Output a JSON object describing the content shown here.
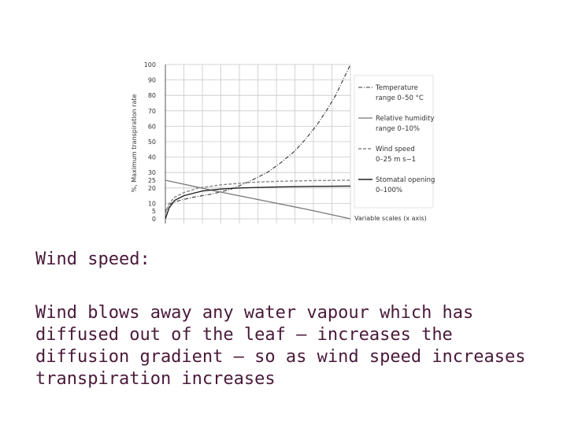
{
  "heading": "Wind speed:",
  "body": "Wind blows away any water vapour which has diffused out of the leaf – increases the diffusion gradient – so as wind speed increases transpiration increases",
  "chart_data": {
    "type": "line",
    "ylabel": "%, Maximum transpiration rate",
    "xlabel": "Variable scales (x axis)",
    "ylim": [
      0,
      100
    ],
    "yticks": [
      0,
      5,
      10,
      20,
      25,
      30,
      40,
      50,
      60,
      70,
      80,
      90,
      100
    ],
    "xlim": [
      0,
      1
    ],
    "grid": true,
    "legend_position": "right",
    "series": [
      {
        "name": "Temperature range 0–50 °C",
        "legend_lines": [
          "Temperature",
          "range 0–50 °C"
        ],
        "style": "dash-dot",
        "color": "#333333",
        "x": [
          0,
          0.03,
          0.08,
          0.15,
          0.25,
          0.35,
          0.45,
          0.55,
          0.62,
          0.7,
          0.76,
          0.82,
          0.87,
          0.92,
          0.96,
          1.0
        ],
        "y": [
          5,
          10,
          12,
          14,
          16,
          19,
          24,
          30,
          36,
          44,
          52,
          61,
          70,
          80,
          90,
          100
        ]
      },
      {
        "name": "Relative humidity range 0–10%",
        "legend_lines": [
          "Relative humidity",
          "range 0–10%"
        ],
        "style": "solid-gray",
        "color": "#777777",
        "x": [
          0,
          0.25,
          0.5,
          0.75,
          1.0
        ],
        "y": [
          25,
          18.5,
          12.5,
          6.5,
          0
        ]
      },
      {
        "name": "Wind speed 0–25 m s−1",
        "legend_lines": [
          "Wind speed",
          "0–25 m s−1"
        ],
        "style": "dashed",
        "color": "#888888",
        "x": [
          0,
          0.02,
          0.05,
          0.1,
          0.18,
          0.3,
          0.45,
          0.6,
          0.8,
          1.0
        ],
        "y": [
          3,
          10,
          14,
          17,
          20,
          22,
          23.5,
          24.3,
          24.8,
          25
        ]
      },
      {
        "name": "Stomatal opening 0–100%",
        "legend_lines": [
          "Stomatal opening",
          "0–100%"
        ],
        "style": "solid-dark",
        "color": "#222222",
        "x": [
          0,
          0.02,
          0.05,
          0.1,
          0.2,
          0.3,
          0.4,
          0.6,
          0.8,
          1.0
        ],
        "y": [
          0,
          7,
          12,
          15,
          18,
          19.3,
          20,
          20.6,
          21,
          21.2
        ]
      }
    ]
  }
}
